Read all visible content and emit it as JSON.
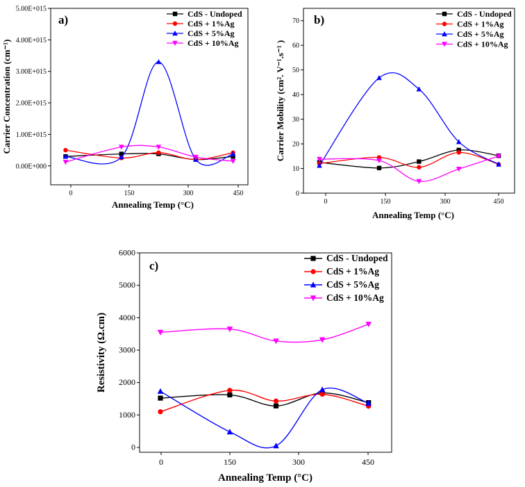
{
  "series_styles": [
    {
      "color": "#000000",
      "marker": "square"
    },
    {
      "color": "#ff0000",
      "marker": "circle"
    },
    {
      "color": "#0000ff",
      "marker": "triangle-up"
    },
    {
      "color": "#ff00ff",
      "marker": "triangle-down"
    }
  ],
  "chart_data": [
    {
      "type": "line",
      "panel_label": "a)",
      "xlabel": "Annealing Temp (°C)",
      "ylabel": "Carrier Concentration (cm⁻¹)",
      "x": [
        0,
        150,
        250,
        350,
        450
      ],
      "xticks": [
        "0",
        "150",
        "300",
        "450"
      ],
      "xlim": [
        -40,
        490
      ],
      "ylim": [
        -0.6,
        5.0
      ],
      "yticks": [
        "0.00E+000",
        "1.00E+015",
        "2.00E+015",
        "3.00E+015",
        "4.00E+015",
        "5.00E+015"
      ],
      "legend": "top-right",
      "series": [
        {
          "name": "CdS - Undoped",
          "values": [
            0.3,
            0.38,
            0.38,
            0.2,
            0.3
          ]
        },
        {
          "name": "CdS + 1%Ag",
          "values": [
            0.5,
            0.25,
            0.42,
            0.2,
            0.42
          ]
        },
        {
          "name": "CdS + 5%Ag",
          "values": [
            0.3,
            0.28,
            3.3,
            0.2,
            0.38
          ]
        },
        {
          "name": "CdS + 10%Ag",
          "values": [
            0.12,
            0.6,
            0.6,
            0.28,
            0.15
          ]
        }
      ]
    },
    {
      "type": "line",
      "panel_label": "b)",
      "xlabel": "Annealing Temp (°C)",
      "ylabel": "Carrier Mobility (cm². V⁻¹.s⁻¹ )",
      "x": [
        0,
        150,
        250,
        350,
        450
      ],
      "xticks": [
        "0",
        "150",
        "300",
        "450"
      ],
      "xlim": [
        -40,
        490
      ],
      "ylim": [
        0,
        75
      ],
      "yticks": [
        "0",
        "10",
        "20",
        "30",
        "40",
        "50",
        "60",
        "70"
      ],
      "legend": "top-right",
      "series": [
        {
          "name": "CdS - Undoped",
          "values": [
            12.5,
            10.2,
            12.8,
            17.5,
            15.2
          ]
        },
        {
          "name": "CdS + 1%Ag",
          "values": [
            12,
            14.5,
            10.5,
            16.5,
            11.7
          ]
        },
        {
          "name": "CdS + 5%Ag",
          "values": [
            11.2,
            46.8,
            42.2,
            20.8,
            11.7
          ]
        },
        {
          "name": "CdS + 10%Ag",
          "values": [
            13.8,
            13.2,
            4.8,
            9.8,
            15
          ]
        }
      ]
    },
    {
      "type": "line",
      "panel_label": "c)",
      "xlabel": "Annealing Temp (°C)",
      "ylabel": "Resistivity (Ω.cm)",
      "x": [
        0,
        150,
        250,
        350,
        450
      ],
      "xticks": [
        "0",
        "150",
        "300",
        "450"
      ],
      "xlim": [
        -45,
        500
      ],
      "ylim": [
        -150,
        6000
      ],
      "yticks": [
        "0",
        "1000",
        "2000",
        "3000",
        "4000",
        "5000",
        "6000"
      ],
      "legend": "top-right",
      "series": [
        {
          "name": "CdS - Undoped",
          "values": [
            1520,
            1620,
            1280,
            1680,
            1380
          ]
        },
        {
          "name": "CdS + 1%Ag",
          "values": [
            1100,
            1760,
            1430,
            1640,
            1270
          ]
        },
        {
          "name": "CdS + 5%Ag",
          "values": [
            1730,
            480,
            50,
            1780,
            1360
          ]
        },
        {
          "name": "CdS + 10%Ag",
          "values": [
            3550,
            3650,
            3280,
            3320,
            3800
          ]
        }
      ]
    }
  ]
}
